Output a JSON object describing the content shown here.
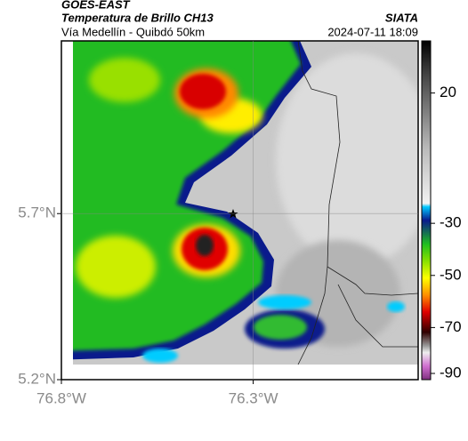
{
  "header": {
    "source": "GOES-EAST",
    "title": "Temperatura de Brillo CH13",
    "subtitle": "Vía Medellín - Quibdó 50km",
    "brand": "SIATA",
    "timestamp": "2024-07-11 18:09"
  },
  "map": {
    "lonlim": [
      -76.8,
      -75.87
    ],
    "latlim": [
      5.2,
      6.22
    ],
    "lon_ticks": [
      {
        "value": -76.8,
        "label": "76.8°W"
      },
      {
        "value": -76.3,
        "label": "76.3°W"
      }
    ],
    "lat_ticks": [
      {
        "value": 5.7,
        "label": "5.7°N"
      },
      {
        "value": 5.2,
        "label": "5.2°N"
      }
    ]
  },
  "colorbar": {
    "lim": [
      40,
      -90
    ],
    "ticks": [
      20,
      -30,
      -50,
      -70,
      -90
    ]
  }
}
